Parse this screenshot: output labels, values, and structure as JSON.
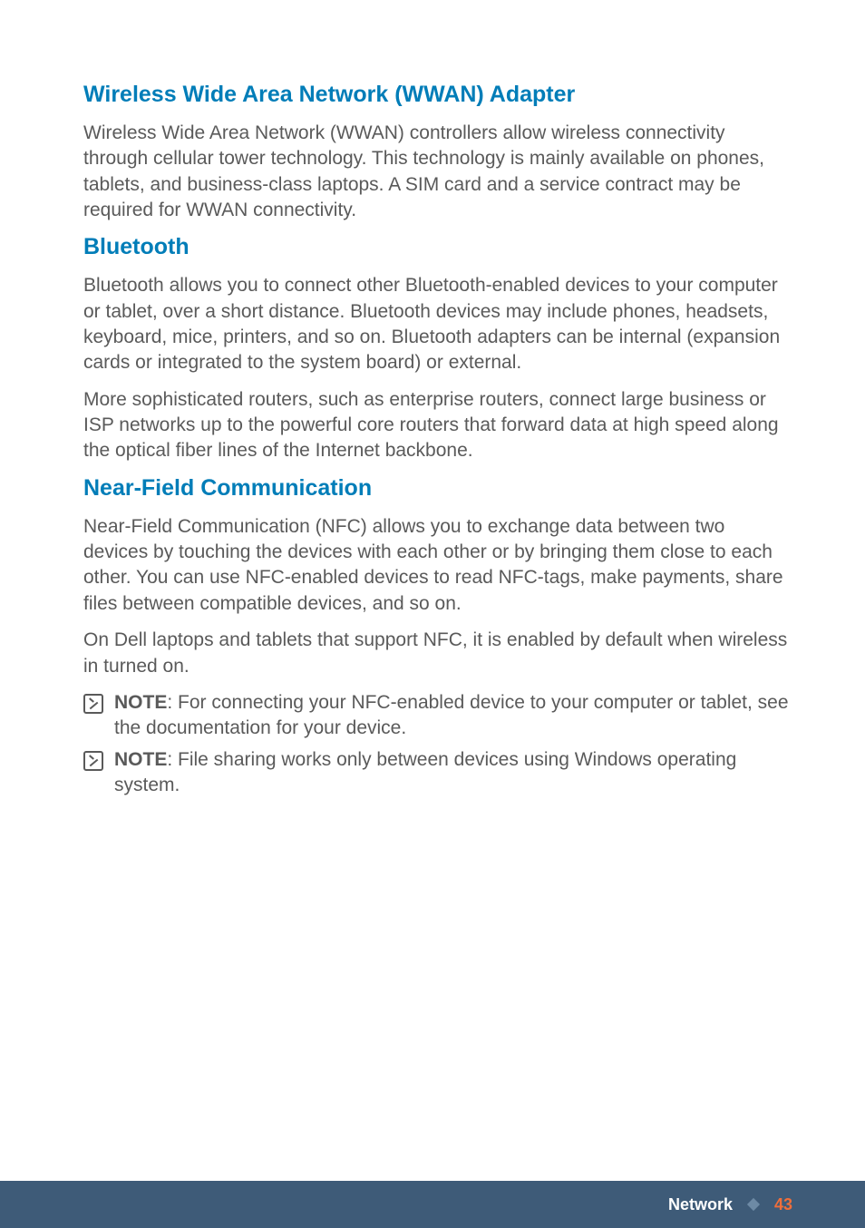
{
  "colors": {
    "heading": "#007db8",
    "body_text": "#5a5a5a",
    "footer_bg": "#3e5b78",
    "footer_text": "#ffffff",
    "footer_accent": "#f06e3a",
    "footer_diamond": "#6d8aa5",
    "page_bg": "#ffffff"
  },
  "typography": {
    "heading_fontsize": 25,
    "heading_weight": 600,
    "body_fontsize": 21,
    "body_lineheight": 1.35,
    "footer_fontsize": 18
  },
  "sections": {
    "wwan": {
      "heading": "Wireless Wide Area Network (WWAN) Adapter",
      "p1": "Wireless Wide Area Network (WWAN) controllers allow wireless connectivity through cellular tower technology. This technology is mainly available on phones, tablets, and business-class laptops. A SIM card and a service contract may be required for WWAN connectivity."
    },
    "bluetooth": {
      "heading": "Bluetooth",
      "p1": "Bluetooth allows you to connect other Bluetooth-enabled devices to your computer or tablet, over a short distance. Bluetooth devices may include phones, headsets, keyboard, mice, printers, and so on. Bluetooth adapters can be internal (expansion cards or integrated to the system board) or external.",
      "p2": "More sophisticated routers, such as enterprise routers, connect large business or ISP networks up to the powerful core routers that forward data at high speed along the optical fiber lines of the Internet backbone."
    },
    "nfc": {
      "heading": "Near-Field Communication",
      "p1": "Near-Field Communication (NFC) allows you to exchange data between two devices by touching the devices with each other or by bringing them close to each other. You can use NFC-enabled devices to read NFC-tags, make payments, share files between compatible devices, and so on.",
      "p2": "On Dell laptops and tablets that support NFC, it is enabled by default when wireless in turned on.",
      "note1_label": "NOTE",
      "note1_text": ": For connecting your NFC-enabled device to your computer or tablet, see the documentation for your device.",
      "note2_label": "NOTE",
      "note2_text": ": File sharing works only between devices using Windows operating system."
    }
  },
  "footer": {
    "section_label": "Network",
    "page_number": "43"
  }
}
